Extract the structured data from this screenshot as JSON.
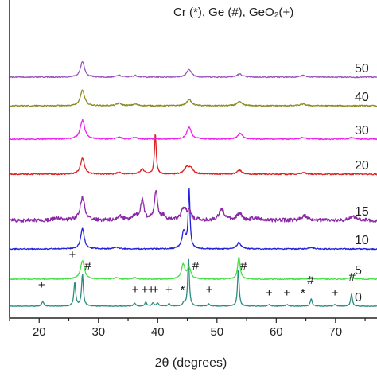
{
  "chart_data": {
    "type": "line",
    "title": "",
    "legend_text": "Cr (*), Ge (#), GeO₂(+)",
    "xlabel": "2θ (degrees)",
    "xlim": [
      15,
      77
    ],
    "x_ticks": [
      20,
      30,
      40,
      50,
      60,
      70
    ],
    "grid": false,
    "y_axis": "stacked offsets, no numeric scale",
    "series": [
      {
        "name": "0",
        "color": "#2a8c7e",
        "baseline": 0,
        "noise": 0.4,
        "peaks": [
          [
            20.6,
            6,
            0.2
          ],
          [
            26.0,
            30,
            0.18
          ],
          [
            27.3,
            40,
            0.18
          ],
          [
            36.1,
            4,
            0.2
          ],
          [
            38.0,
            5,
            0.2
          ],
          [
            39.2,
            4,
            0.2
          ],
          [
            40.0,
            4,
            0.2
          ],
          [
            41.9,
            3,
            0.2
          ],
          [
            44.4,
            4,
            0.2
          ],
          [
            45.2,
            62,
            0.16
          ],
          [
            48.6,
            3,
            0.2
          ],
          [
            53.6,
            48,
            0.16
          ],
          [
            58.8,
            2,
            0.25
          ],
          [
            61.8,
            2,
            0.25
          ],
          [
            65.9,
            9,
            0.2
          ],
          [
            69.9,
            2,
            0.25
          ],
          [
            72.7,
            15,
            0.18
          ]
        ]
      },
      {
        "name": "5",
        "color": "#44e044",
        "baseline": 34,
        "noise": 0.6,
        "peaks": [
          [
            27.3,
            23,
            0.4
          ],
          [
            33.0,
            2,
            0.4
          ],
          [
            36.1,
            2,
            0.4
          ],
          [
            44.3,
            18,
            0.35
          ],
          [
            45.3,
            14,
            0.35
          ],
          [
            53.7,
            28,
            0.25
          ],
          [
            65.9,
            2,
            0.4
          ],
          [
            72.7,
            3,
            0.4
          ]
        ]
      },
      {
        "name": "10",
        "color": "#2222dd",
        "baseline": 72,
        "noise": 0.7,
        "peaks": [
          [
            27.3,
            26,
            0.35
          ],
          [
            33.0,
            2,
            0.5
          ],
          [
            44.4,
            22,
            0.35
          ],
          [
            45.3,
            74,
            0.18
          ],
          [
            53.7,
            8,
            0.4
          ],
          [
            65.9,
            2,
            0.5
          ]
        ]
      },
      {
        "name": "15",
        "color": "#8a28a8",
        "baseline": 108,
        "noise": 2.4,
        "peaks": [
          [
            23.0,
            3,
            0.6
          ],
          [
            27.3,
            28,
            0.45
          ],
          [
            33.6,
            5,
            0.5
          ],
          [
            36.2,
            5,
            0.5
          ],
          [
            37.4,
            25,
            0.35
          ],
          [
            39.7,
            36,
            0.3
          ],
          [
            41.0,
            6,
            0.4
          ],
          [
            44.4,
            14,
            0.5
          ],
          [
            45.3,
            10,
            0.4
          ],
          [
            50.8,
            14,
            0.5
          ],
          [
            53.8,
            8,
            0.5
          ],
          [
            56.5,
            4,
            0.6
          ],
          [
            64.8,
            5,
            0.6
          ],
          [
            72.8,
            5,
            0.6
          ]
        ]
      },
      {
        "name": "20",
        "color": "#dd2222",
        "baseline": 166,
        "noise": 0.8,
        "peaks": [
          [
            27.3,
            20,
            0.4
          ],
          [
            33.5,
            2,
            0.5
          ],
          [
            37.4,
            6,
            0.4
          ],
          [
            39.6,
            51,
            0.18
          ],
          [
            44.9,
            8,
            0.5
          ],
          [
            45.6,
            6,
            0.5
          ],
          [
            53.8,
            5,
            0.5
          ],
          [
            64.6,
            2,
            0.5
          ]
        ]
      },
      {
        "name": "30",
        "color": "#ee22ee",
        "baseline": 210,
        "noise": 0.7,
        "peaks": [
          [
            27.3,
            24,
            0.45
          ],
          [
            33.5,
            2,
            0.5
          ],
          [
            36.2,
            2,
            0.5
          ],
          [
            45.3,
            15,
            0.45
          ],
          [
            53.9,
            7,
            0.5
          ],
          [
            64.5,
            2,
            0.6
          ],
          [
            72.8,
            2,
            0.6
          ]
        ]
      },
      {
        "name": "40",
        "color": "#8a8a22",
        "baseline": 252,
        "noise": 0.7,
        "peaks": [
          [
            27.3,
            20,
            0.4
          ],
          [
            33.5,
            3,
            0.5
          ],
          [
            36.2,
            2,
            0.5
          ],
          [
            45.3,
            8,
            0.45
          ],
          [
            53.8,
            5,
            0.5
          ],
          [
            64.5,
            2,
            0.6
          ]
        ]
      },
      {
        "name": "50",
        "color": "#9955bb",
        "baseline": 288,
        "noise": 0.7,
        "peaks": [
          [
            27.3,
            20,
            0.4
          ],
          [
            33.5,
            2,
            0.5
          ],
          [
            36.2,
            2,
            0.5
          ],
          [
            45.3,
            10,
            0.45
          ],
          [
            53.8,
            4,
            0.5
          ],
          [
            64.5,
            2,
            0.6
          ]
        ]
      }
    ],
    "annotations": [
      {
        "text": "+",
        "x": 20.4,
        "y": 22
      },
      {
        "text": "+",
        "x": 25.6,
        "y": 60
      },
      {
        "text": "#",
        "x": 28.2,
        "y": 46
      },
      {
        "text": "+",
        "x": 36.2,
        "y": 16
      },
      {
        "text": "+",
        "x": 37.8,
        "y": 16
      },
      {
        "text": "+",
        "x": 38.9,
        "y": 16
      },
      {
        "text": "+",
        "x": 39.6,
        "y": 16
      },
      {
        "text": "+",
        "x": 41.9,
        "y": 16
      },
      {
        "text": "*",
        "x": 44.2,
        "y": 16
      },
      {
        "text": "#",
        "x": 46.4,
        "y": 46
      },
      {
        "text": "+",
        "x": 48.7,
        "y": 16
      },
      {
        "text": "#",
        "x": 54.5,
        "y": 46
      },
      {
        "text": "+",
        "x": 58.8,
        "y": 12
      },
      {
        "text": "+",
        "x": 61.8,
        "y": 12
      },
      {
        "text": "*",
        "x": 64.5,
        "y": 12
      },
      {
        "text": "#",
        "x": 65.8,
        "y": 28
      },
      {
        "text": "+",
        "x": 69.9,
        "y": 12
      },
      {
        "text": "#",
        "x": 72.8,
        "y": 32
      }
    ]
  }
}
